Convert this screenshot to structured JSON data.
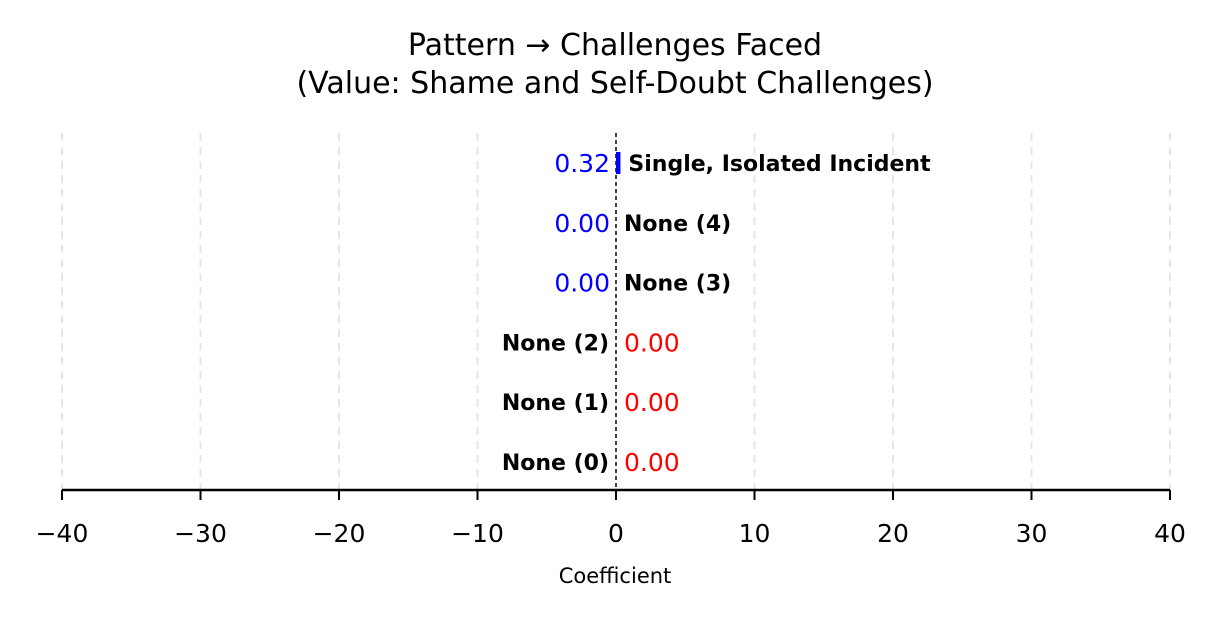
{
  "chart_data": {
    "type": "bar",
    "orientation": "horizontal",
    "title": "Pattern → Challenges Faced",
    "subtitle": "(Value: Shame and Self-Doubt Challenges)",
    "xlabel": "Coefficient",
    "ylabel": "",
    "xlim": [
      -40,
      40
    ],
    "xticks": [
      -40,
      -30,
      -20,
      -10,
      0,
      10,
      20,
      30,
      40
    ],
    "xtick_labels": [
      "−40",
      "−30",
      "−20",
      "−10",
      "0",
      "10",
      "20",
      "30",
      "40"
    ],
    "grid": true,
    "categories": [
      "Single, Isolated Incident",
      "None (4)",
      "None (3)",
      "None (2)",
      "None (1)",
      "None (0)"
    ],
    "values": [
      0.32,
      0.0,
      0.0,
      0.0,
      0.0,
      0.0
    ],
    "value_labels": [
      "0.32",
      "0.00",
      "0.00",
      "0.00",
      "0.00",
      "0.00"
    ],
    "colors": {
      "positive": "#0000ff",
      "negative": "#ff0000",
      "grid": "#e6e6e6",
      "zero_line": "#000000"
    },
    "series_sign": [
      "positive",
      "positive",
      "positive",
      "negative",
      "negative",
      "negative"
    ]
  }
}
